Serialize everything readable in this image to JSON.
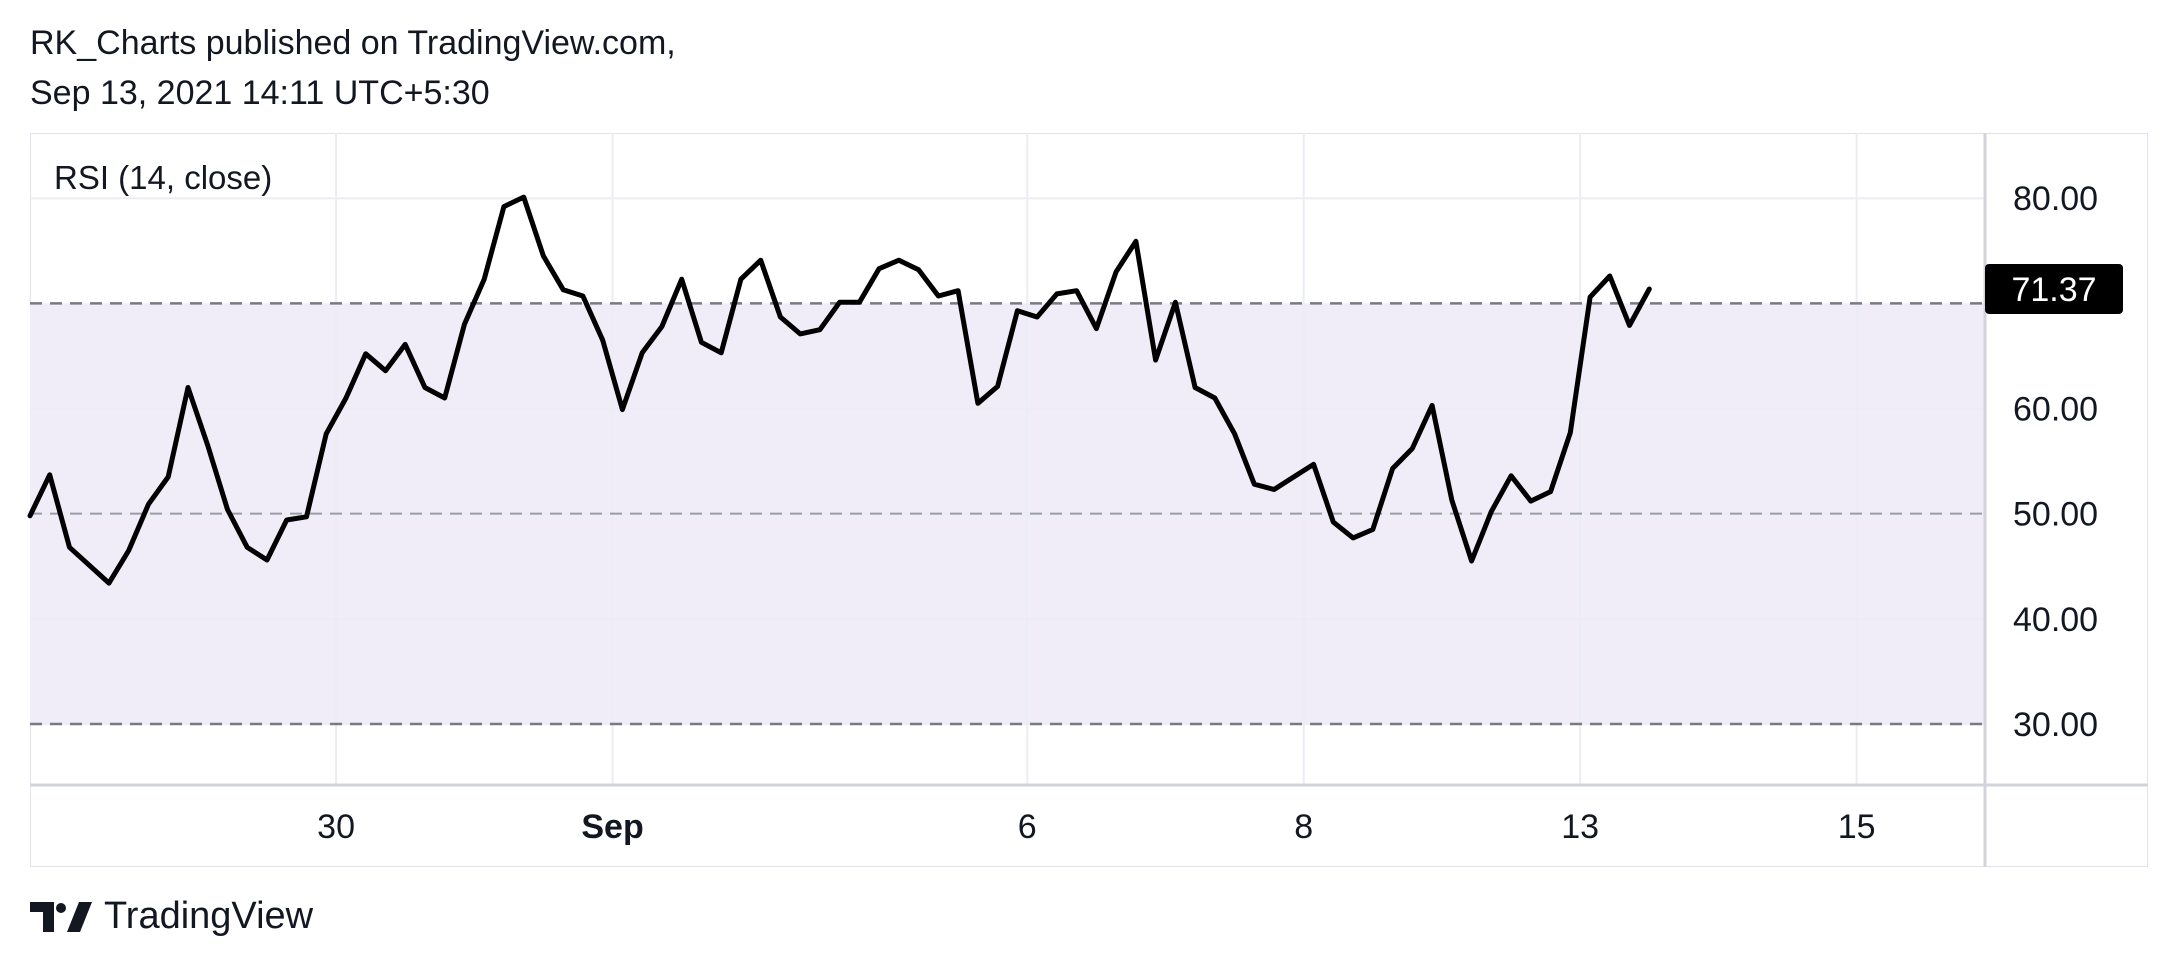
{
  "header": {
    "publisher_line": "RK_Charts published on TradingView.com,",
    "date_line": "Sep 13, 2021 14:11 UTC+5:30"
  },
  "footer": {
    "brand": "TradingView",
    "logo_icon": "tradingview-logo-icon"
  },
  "colors": {
    "line": "#000000",
    "band_fill": "#f0edf9",
    "grid": "#ebedf2",
    "dashed": "#787b86",
    "label_bg": "#000000",
    "label_text": "#ffffff"
  },
  "chart_data": {
    "type": "line",
    "title": "RSI (14, close)",
    "series": [
      {
        "values": [
          49.8,
          53.7,
          46.8,
          45.1,
          43.4,
          46.5,
          50.9,
          53.5,
          62.0,
          56.5,
          50.4,
          46.8,
          45.6,
          49.4,
          49.7,
          57.6,
          61.0,
          65.2,
          63.6,
          66.1,
          62.0,
          61.0,
          68.0,
          72.3,
          79.2,
          80.1,
          74.5,
          71.3,
          70.7,
          66.5,
          59.9,
          65.3,
          67.8,
          72.3,
          66.3,
          65.3,
          72.3,
          74.1,
          68.7,
          67.1,
          67.5,
          70.1,
          70.1,
          73.3,
          74.1,
          73.2,
          70.7,
          71.2,
          60.5,
          62.1,
          69.3,
          68.7,
          70.9,
          71.2,
          67.6,
          73.0,
          75.9,
          64.6,
          70.1,
          62.0,
          61.0,
          57.6,
          52.8,
          52.3,
          53.5,
          54.7,
          49.2,
          47.7,
          48.5,
          54.3,
          56.2,
          60.3,
          51.3,
          45.5,
          50.2,
          53.6,
          51.2,
          52.1,
          57.7,
          70.6,
          72.6,
          67.9,
          71.37
        ]
      }
    ],
    "x_ticks": [
      {
        "label": "30",
        "index": 15.5,
        "bold": false
      },
      {
        "label": "Sep",
        "index": 29.5,
        "bold": true
      },
      {
        "label": "6",
        "index": 50.5,
        "bold": false
      },
      {
        "label": "8",
        "index": 64.5,
        "bold": false
      },
      {
        "label": "13",
        "index": 78.5,
        "bold": false
      },
      {
        "label": "15",
        "index": 92.5,
        "bold": false
      }
    ],
    "x_range": [
      0,
      99
    ],
    "y_ticks": [
      "80.00",
      "60.00",
      "50.00",
      "40.00",
      "30.00"
    ],
    "ylim": [
      24.2,
      86.2
    ],
    "levels": {
      "upper": 70,
      "middle": 50,
      "lower": 30
    },
    "last_value_label": "71.37",
    "last_value": 71.37,
    "grid": true,
    "legend": "none"
  }
}
